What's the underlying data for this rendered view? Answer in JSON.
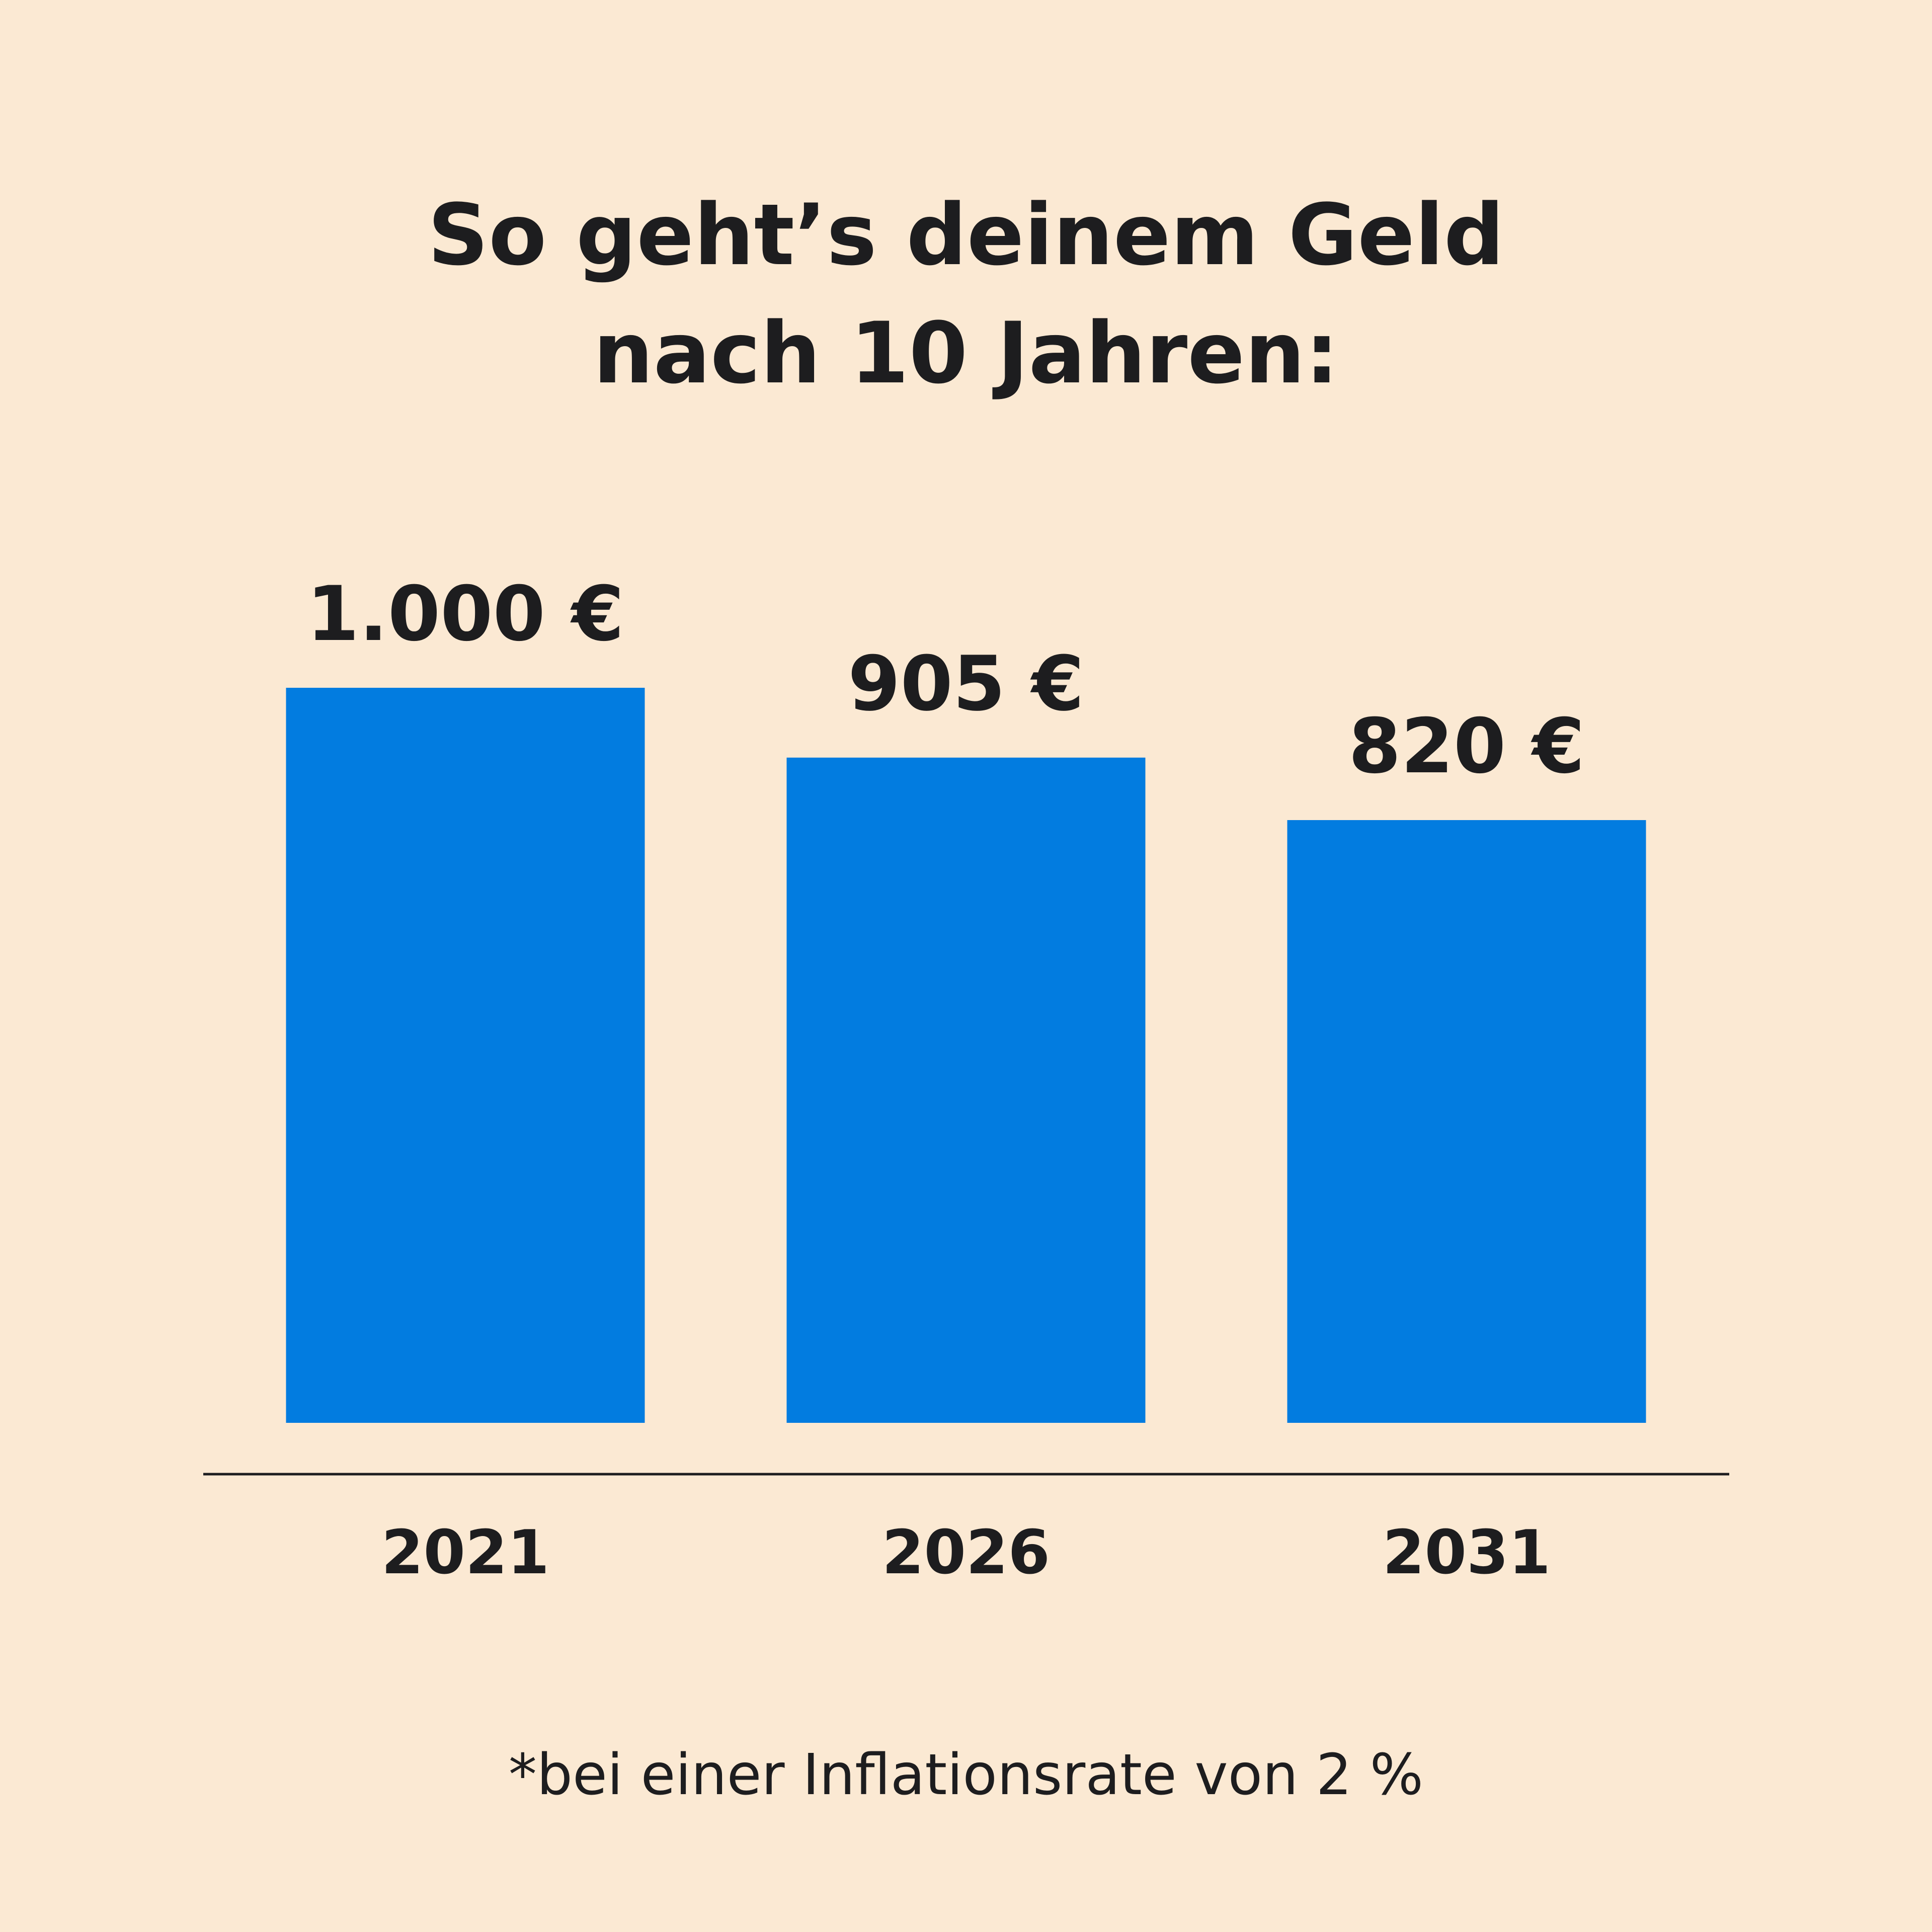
{
  "chart_data": {
    "type": "bar",
    "title_lines": [
      "So geht’s deinem Geld",
      "nach 10 Jahren:"
    ],
    "categories": [
      "2021",
      "2026",
      "2031"
    ],
    "values": [
      1000,
      905,
      820
    ],
    "value_labels": [
      "1.000 €",
      "905 €",
      "820 €"
    ],
    "footnote": "*bei einer Inflationsrate von 2 %",
    "ylim": [
      0,
      1000
    ],
    "grid": false,
    "legend": "none",
    "bar_color": "#027CE0",
    "axis_color": "#1D1D1F",
    "text_color": "#1D1D1F",
    "background_color": "#FBE9D3"
  }
}
